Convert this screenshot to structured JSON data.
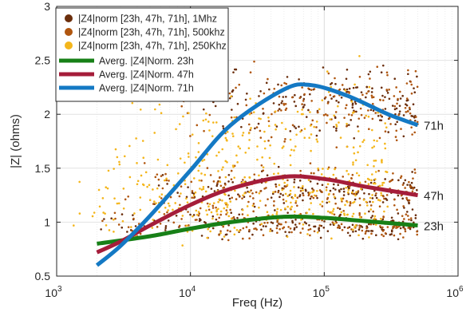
{
  "chart_data": {
    "type": "scatter",
    "title": "",
    "xlabel": "Freq (Hz)",
    "ylabel": "|Z| (ohms)",
    "xscale": "log",
    "xlim": [
      1000,
      1000000
    ],
    "ylim": [
      0.5,
      3
    ],
    "x_ticks": [
      1000,
      10000,
      100000,
      1000000
    ],
    "x_tick_labels": [
      {
        "base": "10",
        "exp": "3"
      },
      {
        "base": "10",
        "exp": "4"
      },
      {
        "base": "10",
        "exp": "5"
      },
      {
        "base": "10",
        "exp": "6"
      }
    ],
    "y_ticks": [
      0.5,
      1,
      1.5,
      2,
      2.5,
      3
    ],
    "y_tick_labels": [
      "0.5",
      "1",
      "1.5",
      "2",
      "2.5",
      "3"
    ],
    "grid": true,
    "legend_position": "top-left",
    "scatter_series": [
      {
        "name": "|Z4|norm [23h, 47h, 71h], 1Mhz",
        "color": "#6b2e0c",
        "clusters": [
          {
            "x_range": [
              2000,
              500000
            ],
            "y_center": 0.98,
            "spread": 0.06
          },
          {
            "x_range": [
              5000,
              500000
            ],
            "y_center": 1.3,
            "spread": 0.08
          },
          {
            "x_range": [
              10000,
              500000
            ],
            "y_center": 2.1,
            "spread": 0.15
          }
        ]
      },
      {
        "name": "|Z4|norm [23h, 47h, 71h], 500khz",
        "color": "#b0560f",
        "clusters": [
          {
            "x_range": [
              2000,
              500000
            ],
            "y_center": 0.98,
            "spread": 0.07
          },
          {
            "x_range": [
              3000,
              500000
            ],
            "y_center": 1.3,
            "spread": 0.1
          },
          {
            "x_range": [
              8000,
              500000
            ],
            "y_center": 2.1,
            "spread": 0.2
          }
        ]
      },
      {
        "name": "|Z4|norm [23h, 47h, 71h], 250Khz",
        "color": "#f4b61c",
        "clusters": [
          {
            "x_range": [
              1200,
              300000
            ],
            "y_center": 1.1,
            "spread": 0.12
          },
          {
            "x_range": [
              2000,
              300000
            ],
            "y_center": 1.4,
            "spread": 0.2
          },
          {
            "x_range": [
              3000,
              300000
            ],
            "y_center": 1.8,
            "spread": 0.3
          }
        ]
      }
    ],
    "series": [
      {
        "name": "Averg. |Z4|Norm. 23h",
        "color": "#178017",
        "label": "23h",
        "x": [
          2000,
          5000,
          10000,
          20000,
          50000,
          100000,
          200000,
          500000
        ],
        "y": [
          0.8,
          0.87,
          0.94,
          1.0,
          1.05,
          1.04,
          1.01,
          0.97
        ]
      },
      {
        "name": "Averg. |Z4|Norm. 47h",
        "color": "#a51d3a",
        "label": "47h",
        "x": [
          2000,
          3000,
          5000,
          10000,
          20000,
          50000,
          100000,
          200000,
          500000
        ],
        "y": [
          0.72,
          0.82,
          0.97,
          1.16,
          1.31,
          1.42,
          1.4,
          1.33,
          1.25
        ]
      },
      {
        "name": "Averg. |Z4|Norm. 71h",
        "color": "#1479c4",
        "label": "71h",
        "x": [
          2000,
          3000,
          5000,
          10000,
          20000,
          50000,
          80000,
          150000,
          300000,
          500000
        ],
        "y": [
          0.6,
          0.78,
          1.06,
          1.48,
          1.9,
          2.23,
          2.27,
          2.17,
          2.0,
          1.9
        ]
      }
    ]
  }
}
